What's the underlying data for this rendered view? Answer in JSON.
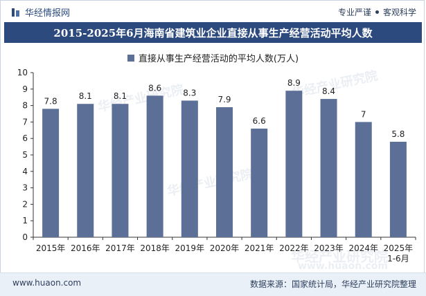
{
  "header": {
    "brand_name": "华经情报网",
    "tag1": "专业严谨",
    "tag2": "客观科学"
  },
  "title": "2015-2025年6月海南省建筑业企业直接从事生产经营活动平均人数",
  "footer": {
    "site": "www.huaon.com",
    "source": "数据来源：国家统计局，华经产业研究院整理"
  },
  "watermark": {
    "text1": "华经产业研究院",
    "text2": "www.huaon.com"
  },
  "colors": {
    "bar": "#5b6f97",
    "banner": "#2c4a7d",
    "footer_bg": "#eaf0f8"
  },
  "chart_data": {
    "type": "bar",
    "title": "2015-2025年6月海南省建筑业企业直接从事生产经营活动平均人数",
    "categories": [
      "2015年",
      "2016年",
      "2017年",
      "2018年",
      "2019年",
      "2020年",
      "2021年",
      "2022年",
      "2023年",
      "2024年",
      "2025年\n1-6月"
    ],
    "series": [
      {
        "name": "直接从事生产经营活动的平均人数(万人)",
        "values": [
          7.8,
          8.1,
          8.1,
          8.6,
          8.3,
          7.9,
          6.6,
          8.9,
          8.4,
          7,
          5.8
        ],
        "labels": [
          "7.8",
          "8.1",
          "8.1",
          "8.6",
          "8.3",
          "7.9",
          "6.6",
          "8.9",
          "8.4",
          "7",
          "5.8"
        ]
      }
    ],
    "ylim": [
      0,
      10
    ],
    "yticks": [
      0,
      1,
      2,
      3,
      4,
      5,
      6,
      7,
      8,
      9,
      10
    ],
    "xlabel": "",
    "ylabel": "",
    "grid": false,
    "legend_position": "top"
  }
}
